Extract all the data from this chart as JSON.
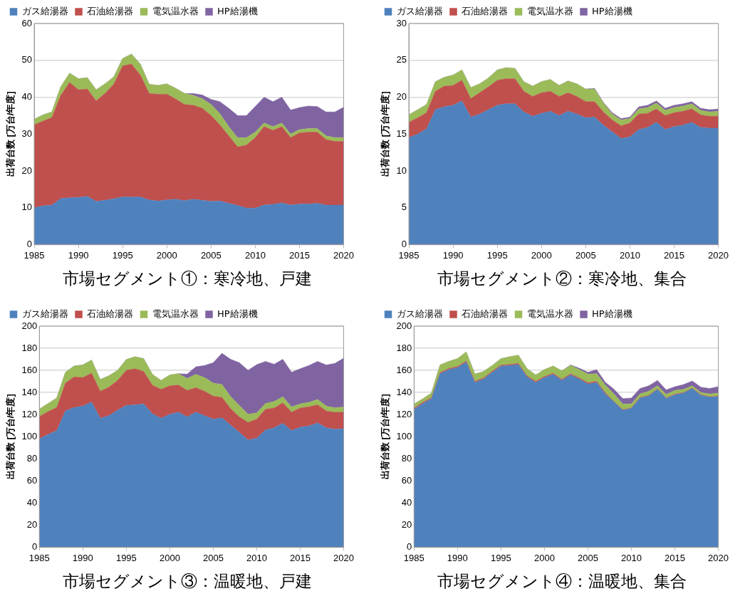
{
  "chart_data": [
    {
      "type": "area",
      "title": "市場セグメント①：寒冷地、戸建",
      "ylabel": "出荷台数 [万台/年度]",
      "stacked": true,
      "legend": "top left",
      "grid": "y",
      "xlim": [
        1985,
        2020
      ],
      "xticks": [
        1985,
        1990,
        1995,
        2000,
        2005,
        2010,
        2015,
        2020
      ],
      "ylim": [
        0,
        60
      ],
      "yticks": [
        0,
        10,
        20,
        30,
        40,
        50,
        60
      ],
      "x": [
        1985,
        1986,
        1987,
        1988,
        1989,
        1990,
        1991,
        1992,
        1993,
        1994,
        1995,
        1996,
        1997,
        1998,
        1999,
        2000,
        2001,
        2002,
        2003,
        2004,
        2005,
        2006,
        2007,
        2008,
        2009,
        2010,
        2011,
        2012,
        2013,
        2014,
        2015,
        2016,
        2017,
        2018,
        2019,
        2020
      ],
      "series": [
        {
          "name": "ガス給湯器",
          "color": "#4f81bd",
          "values": [
            10,
            10.5,
            10.7,
            12.5,
            12.7,
            12.8,
            13.1,
            11.7,
            12,
            12.4,
            12.9,
            12.9,
            12.9,
            12.1,
            11.8,
            12.1,
            12.3,
            11.9,
            12.3,
            12,
            11.7,
            11.8,
            11.2,
            10.6,
            9.9,
            9.9,
            10.7,
            10.9,
            11.3,
            10.7,
            11,
            11,
            11.2,
            10.7,
            10.7,
            10.7
          ]
        },
        {
          "name": "石油給湯器",
          "color": "#c0504d",
          "values": [
            22.5,
            23,
            23.8,
            28,
            31.3,
            29.2,
            29.1,
            27.3,
            29,
            31.1,
            35.6,
            36.1,
            33.1,
            28.9,
            29,
            28.7,
            27.2,
            26.1,
            25.5,
            25,
            23.3,
            20.7,
            18.3,
            15.9,
            17.1,
            19.1,
            21.3,
            20.1,
            20.7,
            18.3,
            19.3,
            19.5,
            19.3,
            17.8,
            17.3,
            17.3
          ]
        },
        {
          "name": "電気温水器",
          "color": "#9bbb59",
          "values": [
            1.5,
            1.7,
            1.5,
            2.3,
            2.5,
            3,
            3.1,
            3,
            2.6,
            2,
            2,
            2.7,
            3,
            2.5,
            2.4,
            2.8,
            2.9,
            3,
            2.7,
            2.6,
            3,
            3,
            2.5,
            2.5,
            2,
            1.5,
            1,
            1,
            1,
            1,
            0.9,
            1,
            1,
            1,
            1,
            1
          ]
        },
        {
          "name": "HP給湯機",
          "color": "#8064a2",
          "values": [
            0,
            0,
            0,
            0,
            0,
            0,
            0,
            0,
            0,
            0,
            0,
            0,
            0,
            0,
            0,
            0,
            0,
            0,
            0.5,
            1,
            1.4,
            3.3,
            5,
            6,
            6,
            7,
            7,
            6.8,
            7,
            6.5,
            6,
            6.1,
            6,
            6.5,
            7,
            8.3
          ]
        }
      ]
    },
    {
      "type": "area",
      "title": "市場セグメント②：寒冷地、集合",
      "ylabel": "出荷台数 [万台/年度]",
      "stacked": true,
      "legend": "top left",
      "grid": "y",
      "xlim": [
        1985,
        2020
      ],
      "xticks": [
        1985,
        1990,
        1995,
        2000,
        2005,
        2010,
        2015,
        2020
      ],
      "ylim": [
        0,
        30
      ],
      "yticks": [
        0,
        5,
        10,
        15,
        20,
        25,
        30
      ],
      "x": [
        1985,
        1986,
        1987,
        1988,
        1989,
        1990,
        1991,
        1992,
        1993,
        1994,
        1995,
        1996,
        1997,
        1998,
        1999,
        2000,
        2001,
        2002,
        2003,
        2004,
        2005,
        2006,
        2007,
        2008,
        2009,
        2010,
        2011,
        2012,
        2013,
        2014,
        2015,
        2016,
        2017,
        2018,
        2019,
        2020
      ],
      "series": [
        {
          "name": "ガス給湯器",
          "color": "#4f81bd",
          "values": [
            14.5,
            15,
            15.7,
            18.3,
            18.7,
            18.9,
            19.5,
            17.3,
            17.7,
            18.3,
            18.9,
            19.1,
            19.1,
            18,
            17.4,
            17.8,
            18.1,
            17.5,
            18.1,
            17.7,
            17.2,
            17.3,
            16.2,
            15.3,
            14.4,
            14.6,
            15.6,
            15.9,
            16.6,
            15.6,
            16,
            16.2,
            16.6,
            15.9,
            15.8,
            15.8
          ]
        },
        {
          "name": "石油給湯器",
          "color": "#c0504d",
          "values": [
            2.1,
            2.2,
            2.2,
            2.5,
            2.8,
            2.7,
            2.8,
            2.5,
            2.9,
            3.1,
            3.4,
            3.4,
            3.4,
            2.8,
            2.7,
            2.8,
            2.7,
            2.6,
            2.5,
            2.4,
            2.2,
            2.1,
            1.8,
            1.6,
            1.7,
            1.9,
            2.1,
            1.9,
            1.8,
            1.9,
            1.9,
            1.9,
            1.8,
            1.7,
            1.6,
            1.6
          ]
        },
        {
          "name": "電気温水器",
          "color": "#9bbb59",
          "values": [
            1,
            1.1,
            1.1,
            1.3,
            1.2,
            1.4,
            1.4,
            1.5,
            1.2,
            1.2,
            1.4,
            1.5,
            1.4,
            1.3,
            1.4,
            1.5,
            1.6,
            1.5,
            1.6,
            1.7,
            1.7,
            1.7,
            1.2,
            0.8,
            0.8,
            0.6,
            0.7,
            0.8,
            0.8,
            0.7,
            0.7,
            0.7,
            0.7,
            0.6,
            0.6,
            0.7
          ]
        },
        {
          "name": "HP給湯機",
          "color": "#8064a2",
          "values": [
            0,
            0,
            0,
            0,
            0,
            0,
            0,
            0,
            0,
            0,
            0,
            0,
            0,
            0,
            0,
            0,
            0,
            0,
            0,
            0,
            0,
            0.1,
            0.1,
            0.2,
            0.2,
            0.2,
            0.3,
            0.3,
            0.3,
            0.3,
            0.3,
            0.3,
            0.3,
            0.3,
            0.3,
            0.3
          ]
        }
      ]
    },
    {
      "type": "area",
      "title": "市場セグメント③：温暖地、戸建",
      "ylabel": "出荷台数 [万台/年度]",
      "stacked": true,
      "legend": "top left",
      "grid": "y",
      "xlim": [
        1985,
        2020
      ],
      "xticks": [
        1985,
        1990,
        1995,
        2000,
        2005,
        2010,
        2015,
        2020
      ],
      "ylim": [
        0,
        200
      ],
      "yticks": [
        0,
        20,
        40,
        60,
        80,
        100,
        120,
        140,
        160,
        180,
        200
      ],
      "x": [
        1985,
        1986,
        1987,
        1988,
        1989,
        1990,
        1991,
        1992,
        1993,
        1994,
        1995,
        1996,
        1997,
        1998,
        1999,
        2000,
        2001,
        2002,
        2003,
        2004,
        2005,
        2006,
        2007,
        2008,
        2009,
        2010,
        2011,
        2012,
        2013,
        2014,
        2015,
        2016,
        2017,
        2018,
        2019,
        2020
      ],
      "series": [
        {
          "name": "ガス給湯器",
          "color": "#4f81bd",
          "values": [
            98,
            102,
            105.5,
            123.4,
            126.4,
            127.6,
            131.3,
            116.6,
            119,
            124,
            128.3,
            128.8,
            129.6,
            120.7,
            116.6,
            120.2,
            122.2,
            117.8,
            122.2,
            119,
            115.8,
            117,
            110.4,
            103.8,
            96.9,
            98.7,
            106,
            108,
            112.1,
            105.5,
            108.5,
            109.7,
            112.4,
            108,
            106.7,
            107.2
          ]
        },
        {
          "name": "石油給湯器",
          "color": "#c0504d",
          "values": [
            20.1,
            20.7,
            20.9,
            25.1,
            27.7,
            25.8,
            26.2,
            24.5,
            25.8,
            26.9,
            31.7,
            32.7,
            29.4,
            25.8,
            26.2,
            25.8,
            24.5,
            24,
            22.1,
            22.1,
            20.9,
            18.5,
            14.8,
            14,
            16,
            17.1,
            18.7,
            17.9,
            18.5,
            16.7,
            17.4,
            17.4,
            16.4,
            15.2,
            15.3,
            15
          ]
        },
        {
          "name": "電気温水器",
          "color": "#9bbb59",
          "values": [
            6.9,
            7.3,
            8.6,
            9.8,
            9.8,
            11.5,
            11.8,
            10.6,
            10.3,
            9.1,
            9.8,
            10.8,
            11.6,
            9.8,
            8.1,
            9.8,
            10.3,
            10.8,
            12,
            12.3,
            11.8,
            11.7,
            11,
            10.3,
            7.3,
            5.7,
            5.3,
            5.9,
            5.4,
            4.7,
            3.7,
            3.9,
            4.9,
            4.4,
            4.1,
            4.7
          ]
        },
        {
          "name": "HP給湯機",
          "color": "#8064a2",
          "values": [
            0,
            0,
            0,
            0,
            0,
            0,
            0,
            0,
            0,
            0,
            0,
            0,
            0,
            0,
            0,
            0,
            0,
            4,
            6.9,
            11,
            18.4,
            28.3,
            33.8,
            38.8,
            39.8,
            43.7,
            38.1,
            33.8,
            34,
            31.4,
            31.9,
            33.4,
            34.4,
            37.3,
            40.3,
            44.1
          ]
        }
      ]
    },
    {
      "type": "area",
      "title": "市場セグメント④：温暖地、集合",
      "ylabel": "出荷台数 [万台/年度]",
      "stacked": true,
      "legend": "top left",
      "grid": "y",
      "xlim": [
        1985,
        2020
      ],
      "xticks": [
        1985,
        1990,
        1995,
        2000,
        2005,
        2010,
        2015,
        2020
      ],
      "ylim": [
        0,
        200
      ],
      "yticks": [
        0,
        20,
        40,
        60,
        80,
        100,
        120,
        140,
        160,
        180,
        200
      ],
      "x": [
        1985,
        1986,
        1987,
        1988,
        1989,
        1990,
        1991,
        1992,
        1993,
        1994,
        1995,
        1996,
        1997,
        1998,
        1999,
        2000,
        2001,
        2002,
        2003,
        2004,
        2005,
        2006,
        2007,
        2008,
        2009,
        2010,
        2011,
        2012,
        2013,
        2014,
        2015,
        2016,
        2017,
        2018,
        2019,
        2020
      ],
      "series": [
        {
          "name": "ガス給湯器",
          "color": "#4f81bd",
          "values": [
            124.7,
            130,
            134.2,
            157,
            160.7,
            162.5,
            167.4,
            149,
            152.1,
            158.3,
            163.7,
            164.4,
            165.2,
            154.1,
            149,
            153.4,
            156.3,
            150.9,
            155.8,
            152.1,
            147.7,
            149,
            138.7,
            131.3,
            123.9,
            125.6,
            135,
            136.9,
            142.8,
            134.5,
            137.9,
            139.4,
            143.6,
            137.4,
            135.7,
            136.2
          ]
        },
        {
          "name": "石油給湯器",
          "color": "#c0504d",
          "values": [
            1,
            1,
            1,
            1,
            1,
            1,
            1,
            1,
            1,
            1,
            1,
            1,
            1,
            1,
            1,
            1,
            1,
            1,
            1,
            1,
            1,
            1,
            1,
            0.5,
            0.5,
            0.5,
            0.5,
            0.5,
            0.5,
            0.5,
            0.5,
            0.5,
            0.5,
            0.5,
            0.5,
            0.5
          ]
        },
        {
          "name": "電気温水器",
          "color": "#9bbb59",
          "values": [
            3.9,
            3.2,
            4.2,
            6.9,
            6.4,
            7.1,
            8.3,
            6.6,
            5.9,
            5.1,
            5.9,
            6.9,
            7.5,
            6.4,
            5.8,
            6.3,
            6.6,
            7.6,
            7.6,
            7.6,
            7.9,
            7,
            7,
            6.9,
            5.2,
            3.5,
            3.2,
            3.7,
            2.7,
            3.2,
            3.4,
            2.9,
            1.9,
            2,
            2.5,
            2.7
          ]
        },
        {
          "name": "HP給湯機",
          "color": "#8064a2",
          "values": [
            0,
            0,
            0,
            0,
            0,
            0,
            0,
            0,
            0,
            0,
            0,
            0,
            0,
            0,
            0,
            0,
            0,
            0,
            0.5,
            1.3,
            1.7,
            3.7,
            2.5,
            4.2,
            4.9,
            5.4,
            4.9,
            4.9,
            4.9,
            4.2,
            3.4,
            4.4,
            4.4,
            4.9,
            4.9,
            5.9
          ]
        }
      ]
    }
  ]
}
